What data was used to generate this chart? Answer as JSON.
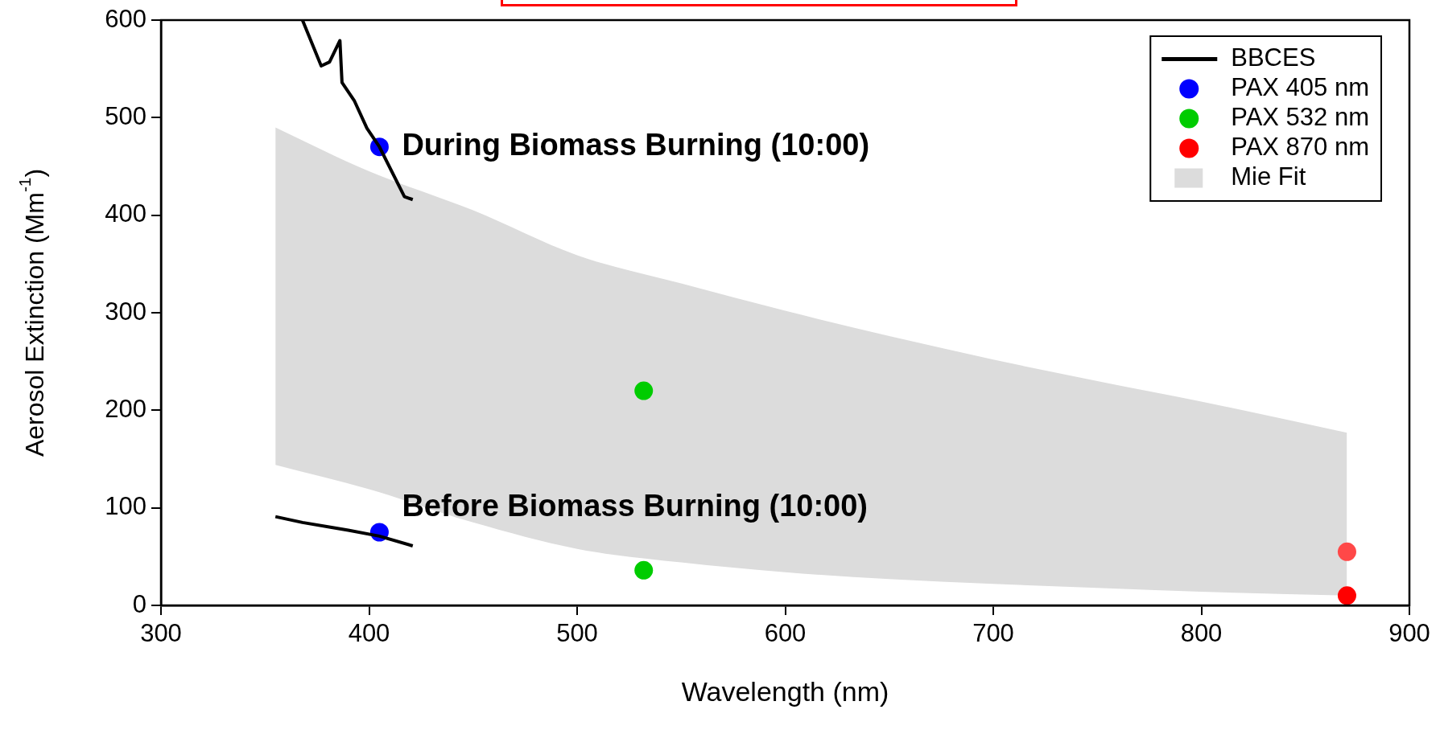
{
  "chart_data": {
    "type": "scatter",
    "xlabel": "Wavelength (nm)",
    "ylabel": "Aerosol Extinction (Mm$^{-1}$)",
    "xlim": [
      300,
      900
    ],
    "xticks": [
      300,
      400,
      500,
      600,
      700,
      800,
      900
    ],
    "ylim": [
      0,
      600
    ],
    "yticks": [
      0,
      100,
      200,
      300,
      400,
      500,
      600
    ],
    "grid": false,
    "legend": "top right",
    "series": [
      {
        "name": "BBCES",
        "type": "line",
        "color": "#000000",
        "x": [
          368,
          377,
          381,
          386,
          387,
          393,
          399,
          405,
          417,
          421
        ],
        "values": [
          600,
          553,
          557,
          579,
          536,
          517,
          489,
          470,
          419,
          416
        ]
      },
      {
        "type": "line",
        "color": "#000000",
        "x": [
          355,
          368,
          382,
          390,
          405,
          421
        ],
        "values": [
          91,
          85,
          80,
          77,
          71,
          61
        ]
      },
      {
        "name": "PAX 405 nm",
        "color": "#0000ff",
        "marker": "circle",
        "x": [
          405,
          405
        ],
        "values": [
          470,
          75
        ]
      },
      {
        "name": "PAX 532 nm",
        "color": "#00cc00",
        "marker": "circle",
        "x": [
          532,
          532
        ],
        "values": [
          220,
          36
        ]
      },
      {
        "name": "PAX 870 nm",
        "color": "#ff0000",
        "marker": "circle",
        "colors": [
          "#ff4848",
          "#ff0000"
        ],
        "x": [
          870,
          870
        ],
        "values": [
          55,
          10
        ]
      },
      {
        "name": "Mie Fit",
        "type": "line",
        "color": "#dcdcdc",
        "x": [
          355,
          400,
          450,
          500,
          550,
          600,
          650,
          700,
          750,
          800,
          870
        ],
        "values": [
          null,
          null,
          null,
          null,
          null,
          null,
          null,
          null,
          null,
          null,
          null
        ],
        "lower": [
          144,
          119,
          85,
          58,
          44,
          34,
          27,
          22,
          18,
          14,
          10
        ],
        "upper": [
          490,
          445,
          405,
          359,
          330,
          302,
          276,
          252,
          230,
          209,
          177
        ]
      }
    ],
    "annotations": [
      "During Biomass Burning (10:00)",
      "Before Biomass Burning (10:00)"
    ]
  }
}
